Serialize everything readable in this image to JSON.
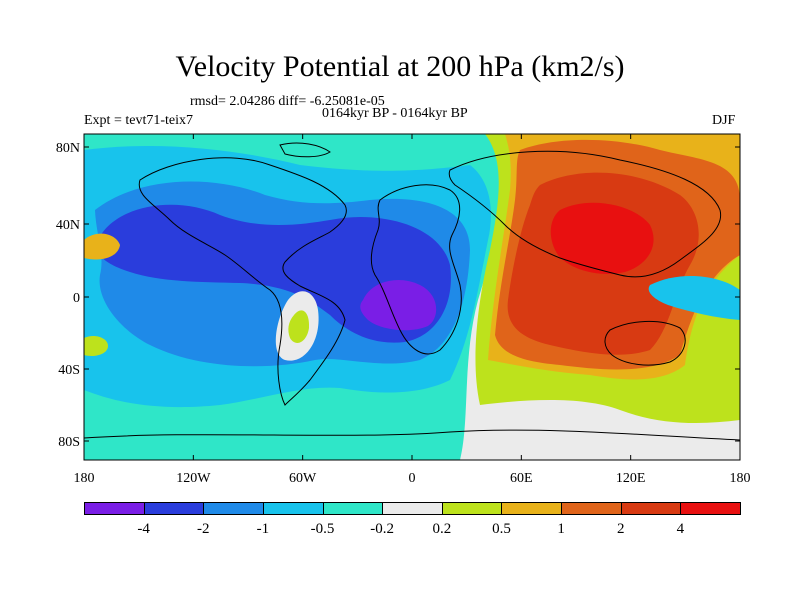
{
  "header": {
    "title": "Velocity Potential at 200 hPa (km2/s)",
    "stats": "rmsd= 2.04286 diff= -6.25081e-05",
    "experiment": "Expt = tevt71-teix7",
    "period": "0164kyr BP - 0164kyr BP",
    "season": "DJF"
  },
  "axes": {
    "x_ticks": [
      "180",
      "120W",
      "60W",
      "0",
      "60E",
      "120E",
      "180"
    ],
    "y_ticks": [
      "80N",
      "40N",
      "0",
      "40S",
      "80S"
    ]
  },
  "colorbar": {
    "labels": [
      "-4",
      "-2",
      "-1",
      "-0.5",
      "-0.2",
      "0.2",
      "0.5",
      "1",
      "2",
      "4"
    ],
    "colors": [
      "#7a1ee6",
      "#2a3ddc",
      "#1f8ae8",
      "#18c3ec",
      "#2fe6c8",
      "#ebebeb",
      "#bde21c",
      "#e8b21a",
      "#e0641a",
      "#d83a12",
      "#e81010"
    ]
  },
  "colors": {
    "bg_neutral": "#ebebeb",
    "land_outline": "#000000"
  }
}
